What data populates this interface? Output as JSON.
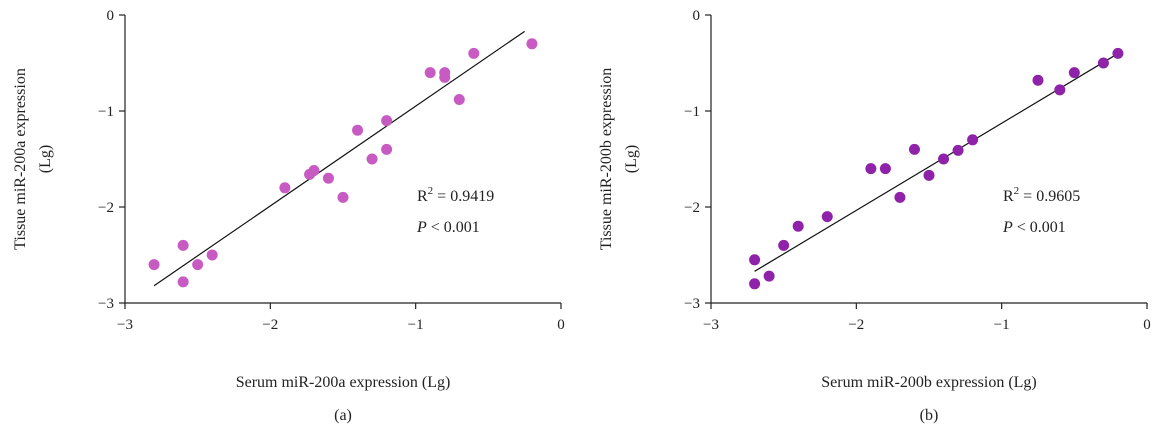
{
  "chart_data": [
    {
      "type": "scatter",
      "panel_label": "(a)",
      "xlabel": "Serum miR-200a expression (Lg)",
      "ylabel_line1": "Tissue miR-200a expression",
      "ylabel_line2": "(Lg)",
      "xlim": [
        -3,
        0
      ],
      "ylim": [
        -3,
        0
      ],
      "xticks": [
        -3,
        -2,
        -1,
        0
      ],
      "yticks": [
        0,
        -1,
        -2,
        -3
      ],
      "xtick_labels": [
        "−3",
        "−2",
        "−1",
        "0"
      ],
      "ytick_labels": [
        "0",
        "−1",
        "−2",
        "−3"
      ],
      "point_color": "#c75bc2",
      "points": [
        {
          "x": -2.8,
          "y": -2.6
        },
        {
          "x": -2.6,
          "y": -2.4
        },
        {
          "x": -2.6,
          "y": -2.78
        },
        {
          "x": -2.5,
          "y": -2.6
        },
        {
          "x": -2.4,
          "y": -2.5
        },
        {
          "x": -1.9,
          "y": -1.8
        },
        {
          "x": -1.73,
          "y": -1.66
        },
        {
          "x": -1.7,
          "y": -1.62
        },
        {
          "x": -1.6,
          "y": -1.7
        },
        {
          "x": -1.5,
          "y": -1.9
        },
        {
          "x": -1.4,
          "y": -1.2
        },
        {
          "x": -1.3,
          "y": -1.5
        },
        {
          "x": -1.2,
          "y": -1.1
        },
        {
          "x": -1.2,
          "y": -1.4
        },
        {
          "x": -0.9,
          "y": -0.6
        },
        {
          "x": -0.8,
          "y": -0.6
        },
        {
          "x": -0.8,
          "y": -0.65
        },
        {
          "x": -0.7,
          "y": -0.88
        },
        {
          "x": -0.6,
          "y": -0.4
        },
        {
          "x": -0.2,
          "y": -0.3
        }
      ],
      "fit_line": {
        "x1": -2.8,
        "y1": -2.82,
        "x2": -0.25,
        "y2": -0.17
      },
      "r2_label": "R",
      "r2_sup": "2",
      "r2_value": " = 0.9419",
      "p_symbol": "P",
      "p_value": " < 0.001"
    },
    {
      "type": "scatter",
      "panel_label": "(b)",
      "xlabel": "Serum miR-200b expression (Lg)",
      "ylabel_line1": "Tissue miR-200b expression",
      "ylabel_line2": "(Lg)",
      "xlim": [
        -3,
        0
      ],
      "ylim": [
        -3,
        0
      ],
      "xticks": [
        -3,
        -2,
        -1,
        0
      ],
      "yticks": [
        0,
        -1,
        -2,
        -3
      ],
      "xtick_labels": [
        "−3",
        "−2",
        "−1",
        "0"
      ],
      "ytick_labels": [
        "0",
        "−1",
        "−2",
        "−3"
      ],
      "point_color": "#8e22a8",
      "points": [
        {
          "x": -2.7,
          "y": -2.55
        },
        {
          "x": -2.7,
          "y": -2.8
        },
        {
          "x": -2.6,
          "y": -2.72
        },
        {
          "x": -2.5,
          "y": -2.4
        },
        {
          "x": -2.4,
          "y": -2.2
        },
        {
          "x": -2.2,
          "y": -2.1
        },
        {
          "x": -1.9,
          "y": -1.6
        },
        {
          "x": -1.8,
          "y": -1.6
        },
        {
          "x": -1.7,
          "y": -1.9
        },
        {
          "x": -1.6,
          "y": -1.4
        },
        {
          "x": -1.5,
          "y": -1.67
        },
        {
          "x": -1.4,
          "y": -1.5
        },
        {
          "x": -1.3,
          "y": -1.41
        },
        {
          "x": -1.2,
          "y": -1.3
        },
        {
          "x": -0.75,
          "y": -0.68
        },
        {
          "x": -0.6,
          "y": -0.78
        },
        {
          "x": -0.5,
          "y": -0.6
        },
        {
          "x": -0.3,
          "y": -0.5
        },
        {
          "x": -0.2,
          "y": -0.4
        }
      ],
      "fit_line": {
        "x1": -2.7,
        "y1": -2.67,
        "x2": -0.22,
        "y2": -0.42
      },
      "r2_label": "R",
      "r2_sup": "2",
      "r2_value": " = 0.9605",
      "p_symbol": "P",
      "p_value": " < 0.001"
    }
  ]
}
